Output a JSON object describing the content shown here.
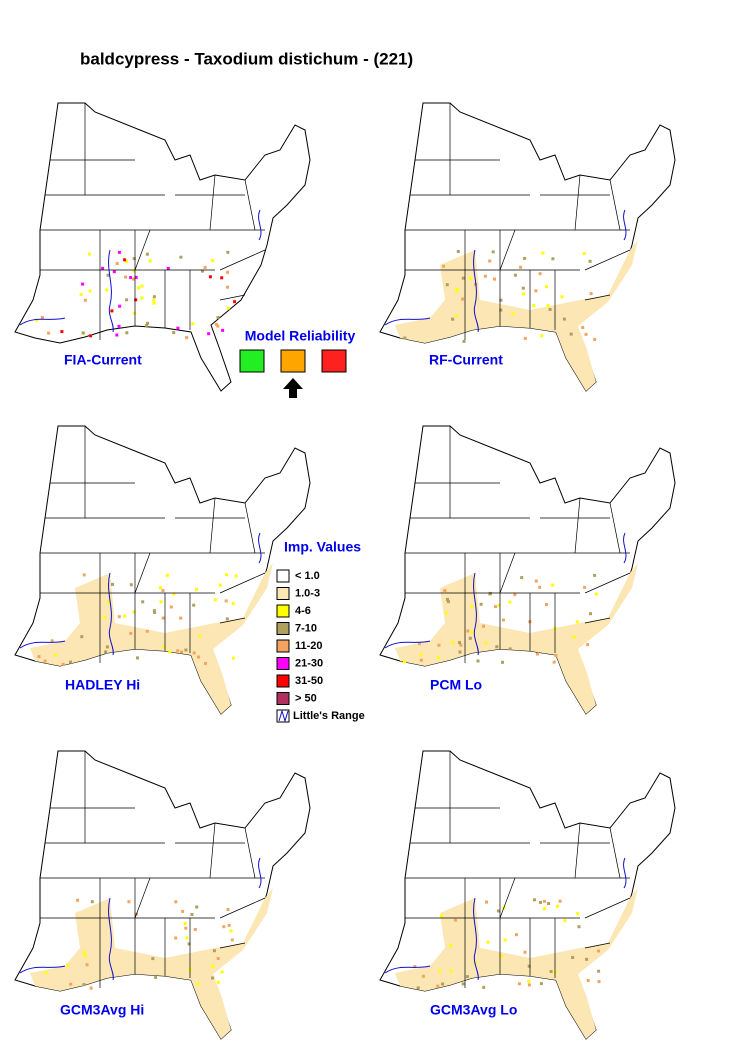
{
  "title": "baldcypress - Taxodium distichum - (221)",
  "maps": [
    {
      "label": "FIA-Current"
    },
    {
      "label": "RF-Current"
    },
    {
      "label": "HADLEY Hi"
    },
    {
      "label": "PCM Lo"
    },
    {
      "label": "GCM3Avg Hi"
    },
    {
      "label": "GCM3Avg Lo"
    }
  ],
  "reliability": {
    "title": "Model Reliability"
  },
  "legend": {
    "title": "Imp. Values",
    "items": [
      {
        "label": "< 1.0",
        "color": "#ffffff"
      },
      {
        "label": "1.0-3",
        "color": "#fbe6b4"
      },
      {
        "label": "4-6",
        "color": "#ffff00"
      },
      {
        "label": "7-10",
        "color": "#b0a060"
      },
      {
        "label": "11-20",
        "color": "#f4a460"
      },
      {
        "label": "21-30",
        "color": "#ff00ff"
      },
      {
        "label": "31-50",
        "color": "#ff0000"
      },
      {
        "label": "> 50",
        "color": "#b03060"
      }
    ],
    "range": "Little's Range"
  }
}
